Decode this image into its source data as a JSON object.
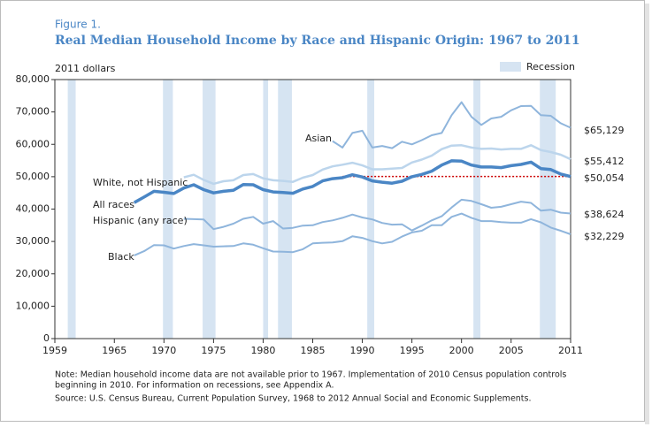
{
  "chart_data": {
    "type": "line",
    "figure": "Figure 1.",
    "title": "Real Median Household Income by Race and Hispanic Origin: 1967 to 2011",
    "y_label": "2011 dollars",
    "recession_label": "Recession",
    "recession_color": "#d6e4f2",
    "recessions": [
      [
        1960.3,
        1961.1
      ],
      [
        1969.9,
        1970.9
      ],
      [
        1973.9,
        1975.2
      ],
      [
        1980.0,
        1980.5
      ],
      [
        1981.5,
        1982.9
      ],
      [
        1990.5,
        1991.2
      ],
      [
        2001.2,
        2001.9
      ],
      [
        2007.9,
        2009.5
      ]
    ],
    "reference_line": {
      "x": [
        1988,
        2011
      ],
      "y": 50054,
      "color": "#cc0000"
    },
    "x": [
      1967,
      1968,
      1969,
      1970,
      1971,
      1972,
      1973,
      1974,
      1975,
      1976,
      1977,
      1978,
      1979,
      1980,
      1981,
      1982,
      1983,
      1984,
      1985,
      1986,
      1987,
      1988,
      1989,
      1990,
      1991,
      1992,
      1993,
      1994,
      1995,
      1996,
      1997,
      1998,
      1999,
      2000,
      2001,
      2002,
      2003,
      2004,
      2005,
      2006,
      2007,
      2008,
      2009,
      2010,
      2011
    ],
    "series": [
      {
        "name": "Asian",
        "color": "#8fb5dc",
        "width": 2,
        "value_labels": [
          "$65,129"
        ],
        "values": [
          null,
          null,
          null,
          null,
          null,
          null,
          null,
          null,
          null,
          null,
          null,
          null,
          null,
          null,
          null,
          null,
          null,
          null,
          null,
          null,
          61000,
          59000,
          63500,
          64200,
          59000,
          59500,
          58800,
          60800,
          60000,
          61300,
          62800,
          63500,
          69000,
          73000,
          68500,
          66000,
          68000,
          68500,
          70500,
          71800,
          71900,
          69000,
          68800,
          66500,
          65129
        ]
      },
      {
        "name": "White, not Hispanic",
        "color": "#bcd5ec",
        "width": 2.5,
        "value_labels": [
          "$55,412"
        ],
        "values": [
          null,
          null,
          null,
          null,
          null,
          49800,
          50600,
          49000,
          47800,
          48600,
          48900,
          50500,
          50800,
          49500,
          48900,
          48700,
          48400,
          49700,
          50500,
          52200,
          53200,
          53700,
          54300,
          53500,
          52300,
          52300,
          52500,
          52700,
          54400,
          55300,
          56500,
          58500,
          59600,
          59700,
          59000,
          58600,
          58700,
          58400,
          58600,
          58600,
          59700,
          58200,
          57600,
          56800,
          55412
        ]
      },
      {
        "name": "All races",
        "color": "#4a86c5",
        "width": 3.5,
        "value_labels": [
          "$50,054"
        ],
        "values": [
          42000,
          43700,
          45500,
          45200,
          44800,
          46500,
          47500,
          46000,
          45000,
          45500,
          45800,
          47600,
          47500,
          46000,
          45300,
          45100,
          44900,
          46200,
          47000,
          48700,
          49400,
          49700,
          50600,
          49900,
          48700,
          48300,
          48000,
          48600,
          50000,
          50700,
          51700,
          53600,
          54900,
          54800,
          53600,
          53000,
          53000,
          52800,
          53400,
          53800,
          54500,
          52500,
          52200,
          50800,
          50054
        ]
      },
      {
        "name": "Hispanic (any race)",
        "color": "#8fb5dc",
        "width": 2,
        "value_labels": [
          "$38,624"
        ],
        "values": [
          null,
          null,
          null,
          null,
          null,
          37000,
          36900,
          36800,
          33800,
          34500,
          35500,
          37000,
          37600,
          35500,
          36300,
          34000,
          34200,
          34900,
          35000,
          36000,
          36500,
          37300,
          38300,
          37400,
          36800,
          35700,
          35200,
          35300,
          33400,
          34900,
          36500,
          37800,
          40500,
          42900,
          42500,
          41500,
          40400,
          40700,
          41500,
          42300,
          41900,
          39500,
          39800,
          38900,
          38624
        ]
      },
      {
        "name": "Black",
        "color": "#8fb5dc",
        "width": 2,
        "value_labels": [
          "$32,229"
        ],
        "values": [
          25700,
          27000,
          28900,
          28800,
          27800,
          28600,
          29200,
          28800,
          28400,
          28500,
          28600,
          29400,
          29000,
          27900,
          26900,
          26800,
          26700,
          27600,
          29400,
          29600,
          29700,
          30100,
          31600,
          31100,
          30100,
          29400,
          29900,
          31500,
          32800,
          33300,
          35000,
          35000,
          37600,
          38600,
          37300,
          36300,
          36300,
          36000,
          35800,
          35800,
          36900,
          35900,
          34300,
          33300,
          32229
        ]
      }
    ],
    "xlim": [
      1959,
      2011
    ],
    "xticks": [
      1959,
      1965,
      1970,
      1975,
      1980,
      1985,
      1990,
      1995,
      2000,
      2005,
      2011
    ],
    "ylim": [
      0,
      80000
    ],
    "yticks": [
      0,
      {
        "value": 10000,
        "label": "10,000"
      },
      {
        "value": 20000,
        "label": "20,000"
      },
      {
        "value": 30000,
        "label": "30,000"
      },
      {
        "value": 40000,
        "label": "40,000"
      },
      {
        "value": 50000,
        "label": "50,000"
      },
      {
        "value": 60000,
        "label": "60,000"
      },
      {
        "value": 70000,
        "label": "70,000"
      },
      {
        "value": 80000,
        "label": "80,000"
      }
    ],
    "notes": [
      "Note: Median household income data are not available prior to 1967. Implementation of 2010 Census population controls",
      "beginning in 2010. For information on recessions, see Appendix A.",
      "Source: U.S. Census Bureau, Current Population Survey, 1968 to 2012 Annual Social and Economic Supplements."
    ]
  }
}
